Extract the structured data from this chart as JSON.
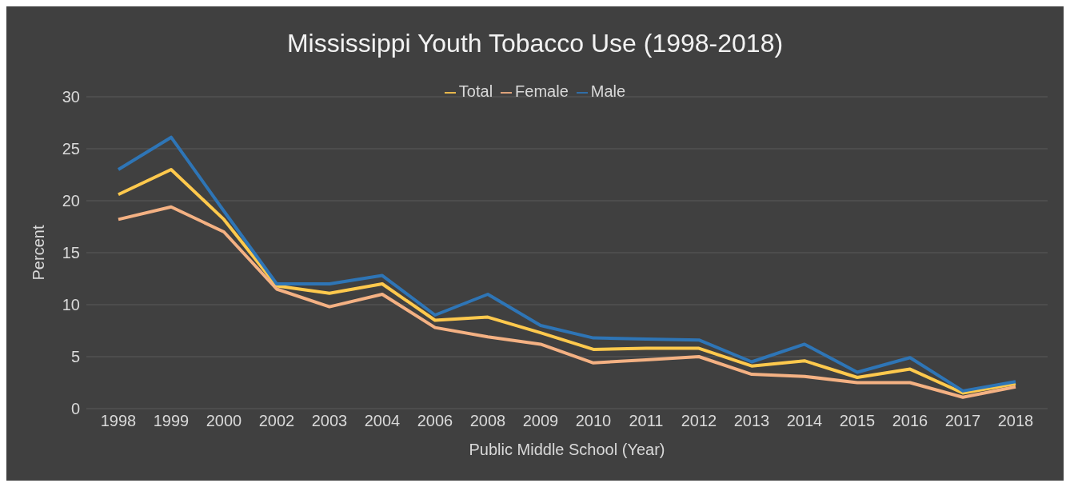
{
  "chart_data": {
    "type": "line",
    "title": "Mississippi Youth Tobacco Use (1998-2018)",
    "xlabel": "Public Middle School (Year)",
    "ylabel": "Percent",
    "categories": [
      "1998",
      "1999",
      "2000",
      "2002",
      "2003",
      "2004",
      "2006",
      "2008",
      "2009",
      "2010",
      "2011",
      "2012",
      "2013",
      "2014",
      "2015",
      "2016",
      "2017",
      "2018"
    ],
    "series": [
      {
        "name": "Total",
        "color": "#ffc94d",
        "values": [
          20.6,
          23.0,
          18.2,
          11.8,
          11.1,
          12.0,
          8.5,
          8.8,
          7.3,
          5.7,
          5.8,
          5.8,
          4.1,
          4.6,
          3.0,
          3.8,
          1.5,
          2.4
        ]
      },
      {
        "name": "Female",
        "color": "#f4b183",
        "values": [
          18.2,
          19.4,
          17.0,
          11.5,
          9.8,
          11.0,
          7.8,
          6.9,
          6.2,
          4.4,
          4.7,
          5.0,
          3.3,
          3.1,
          2.5,
          2.5,
          1.1,
          2.1
        ]
      },
      {
        "name": "Male",
        "color": "#2e75b6",
        "values": [
          23.0,
          26.1,
          19.0,
          12.0,
          12.0,
          12.8,
          9.0,
          11.0,
          8.0,
          6.8,
          6.7,
          6.6,
          4.5,
          6.2,
          3.5,
          4.9,
          1.7,
          2.6
        ]
      }
    ],
    "ylim": [
      0,
      30
    ],
    "yticks": [
      0,
      5,
      10,
      15,
      20,
      25,
      30
    ],
    "grid": "y",
    "legend": "top",
    "marker": "none",
    "line_style": "solid"
  }
}
